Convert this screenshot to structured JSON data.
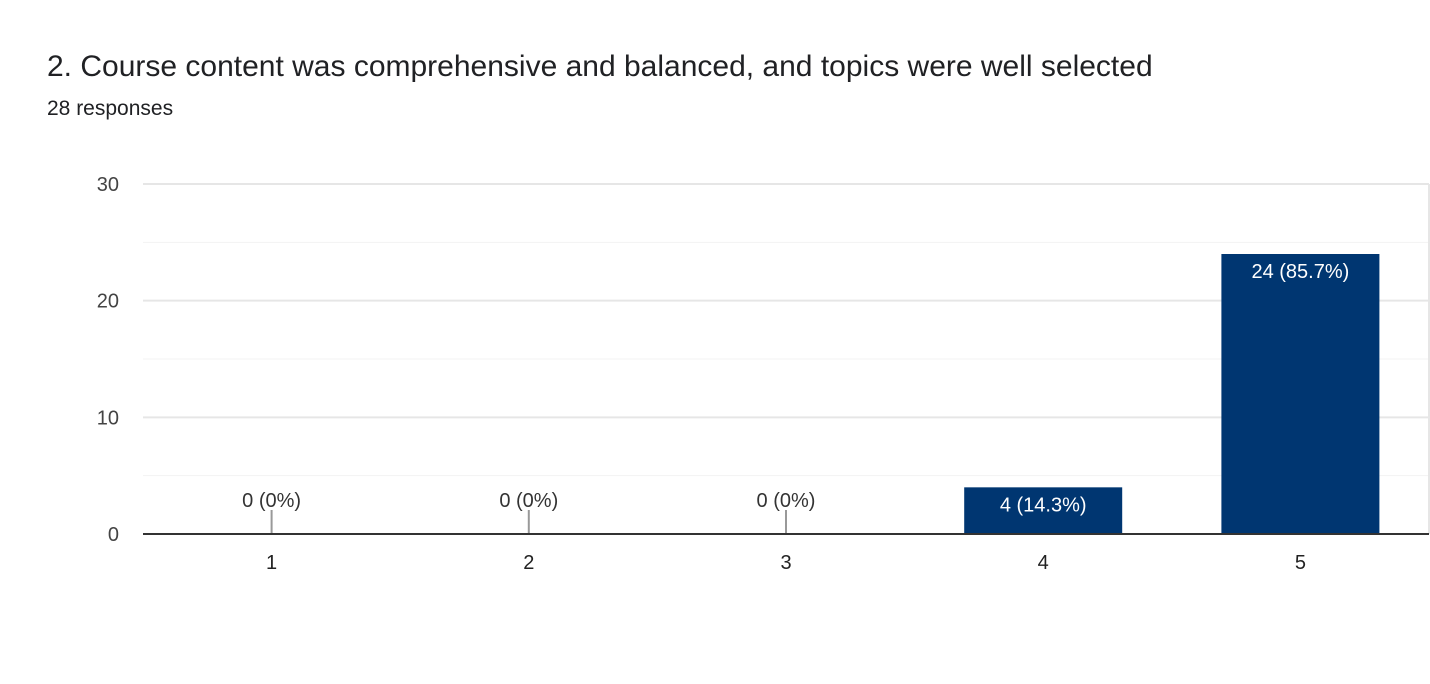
{
  "header": {
    "title": "2. Course content was comprehensive and balanced, and topics were well selected",
    "responses": "28 responses"
  },
  "chart_data": {
    "type": "bar",
    "categories": [
      "1",
      "2",
      "3",
      "4",
      "5"
    ],
    "values": [
      0,
      0,
      0,
      4,
      24
    ],
    "labels": [
      "0 (0%)",
      "0 (0%)",
      "0 (0%)",
      "4 (14.3%)",
      "24 (85.7%)"
    ],
    "ylim": [
      0,
      30
    ],
    "yticks": [
      0,
      10,
      20,
      30
    ],
    "minor_gridlines": [
      5,
      15,
      25
    ],
    "grid": true,
    "xlabel": "",
    "ylabel": "",
    "bar_color": "#003671"
  }
}
